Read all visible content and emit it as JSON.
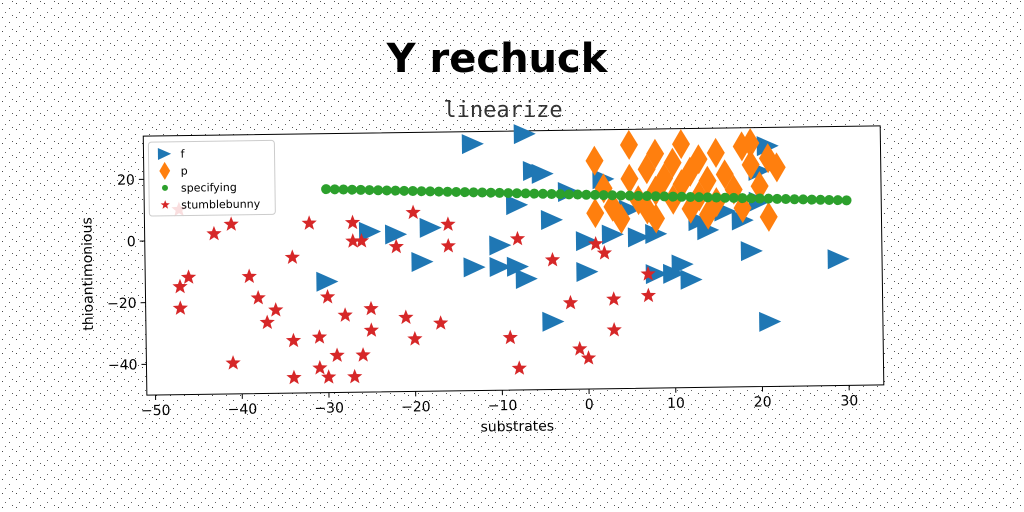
{
  "chart_data": {
    "type": "scatter",
    "title": "Y rechuck",
    "subtitle": "linearize",
    "xlabel": "substrates",
    "ylabel": "thioantimonious",
    "xlim": [
      -51,
      34
    ],
    "ylim": [
      -50,
      34
    ],
    "xticks": [
      -50,
      -40,
      -30,
      -20,
      -10,
      0,
      10,
      20,
      30
    ],
    "yticks": [
      -40,
      -20,
      0,
      20
    ],
    "grid": false,
    "legend_position": "top-left",
    "series": [
      {
        "name": "f",
        "marker": "triangle-right",
        "color": "#1f77b4",
        "points": [
          [
            -30,
            -14
          ],
          [
            -25,
            2
          ],
          [
            -22,
            1
          ],
          [
            -18,
            3
          ],
          [
            -19,
            -8
          ],
          [
            -13,
            30
          ],
          [
            -13,
            -10
          ],
          [
            -10,
            -3
          ],
          [
            -10,
            -10
          ],
          [
            -8,
            -10
          ],
          [
            -7,
            -14
          ],
          [
            -8,
            10
          ],
          [
            -7,
            33
          ],
          [
            -6,
            21
          ],
          [
            -5,
            20
          ],
          [
            -4,
            5
          ],
          [
            -4,
            -28
          ],
          [
            -2,
            14
          ],
          [
            0,
            -2
          ],
          [
            0,
            -12
          ],
          [
            2,
            18
          ],
          [
            3,
            0
          ],
          [
            5,
            8
          ],
          [
            6,
            -1
          ],
          [
            8,
            0
          ],
          [
            8,
            -13
          ],
          [
            10,
            -13
          ],
          [
            11,
            -10
          ],
          [
            12,
            -15
          ],
          [
            13,
            4
          ],
          [
            14,
            1
          ],
          [
            16,
            7
          ],
          [
            18,
            4
          ],
          [
            19,
            -6
          ],
          [
            20,
            10
          ],
          [
            20,
            20
          ],
          [
            21,
            28
          ],
          [
            21,
            -29
          ],
          [
            29,
            -9
          ]
        ]
      },
      {
        "name": "p",
        "marker": "thin-diamond",
        "color": "#ff7f0e",
        "points": [
          [
            1,
            24
          ],
          [
            1,
            7
          ],
          [
            2,
            15
          ],
          [
            3,
            9
          ],
          [
            4,
            5
          ],
          [
            5,
            29
          ],
          [
            5,
            18
          ],
          [
            6,
            11
          ],
          [
            7,
            21
          ],
          [
            7,
            8
          ],
          [
            8,
            26
          ],
          [
            8,
            14
          ],
          [
            8,
            5
          ],
          [
            9,
            18
          ],
          [
            10,
            23
          ],
          [
            10,
            11
          ],
          [
            11,
            29
          ],
          [
            11,
            16
          ],
          [
            12,
            20
          ],
          [
            12,
            8
          ],
          [
            13,
            24
          ],
          [
            13,
            12
          ],
          [
            14,
            17
          ],
          [
            14,
            6
          ],
          [
            15,
            26
          ],
          [
            15,
            10
          ],
          [
            16,
            19
          ],
          [
            17,
            14
          ],
          [
            18,
            28
          ],
          [
            18,
            8
          ],
          [
            19,
            22
          ],
          [
            19,
            29
          ],
          [
            20,
            15
          ],
          [
            21,
            24
          ],
          [
            22,
            21
          ],
          [
            21,
            5
          ]
        ]
      },
      {
        "name": "specifying",
        "marker": "circle",
        "color": "#2ca02c",
        "points": [
          [
            -30,
            16
          ],
          [
            -29,
            15.9
          ],
          [
            -28,
            15.8
          ],
          [
            -27,
            15.7
          ],
          [
            -26,
            15.6
          ],
          [
            -25,
            15.5
          ],
          [
            -24,
            15.4
          ],
          [
            -23,
            15.3
          ],
          [
            -22,
            15.2
          ],
          [
            -21,
            15.1
          ],
          [
            -20,
            15.0
          ],
          [
            -19,
            14.9
          ],
          [
            -18,
            14.8
          ],
          [
            -17,
            14.7
          ],
          [
            -16,
            14.6
          ],
          [
            -15,
            14.5
          ],
          [
            -14,
            14.4
          ],
          [
            -13,
            14.3
          ],
          [
            -12,
            14.2
          ],
          [
            -11,
            14.1
          ],
          [
            -10,
            14.0
          ],
          [
            -9,
            13.9
          ],
          [
            -8,
            13.8
          ],
          [
            -7,
            13.7
          ],
          [
            -6,
            13.6
          ],
          [
            -5,
            13.5
          ],
          [
            -4,
            13.4
          ],
          [
            -3,
            13.3
          ],
          [
            -2,
            13.2
          ],
          [
            -1,
            13.1
          ],
          [
            0,
            13.0
          ],
          [
            1,
            12.9
          ],
          [
            2,
            12.8
          ],
          [
            3,
            12.7
          ],
          [
            4,
            12.6
          ],
          [
            5,
            12.5
          ],
          [
            6,
            12.4
          ],
          [
            7,
            12.3
          ],
          [
            8,
            12.2
          ],
          [
            9,
            12.1
          ],
          [
            10,
            12.0
          ],
          [
            11,
            11.9
          ],
          [
            12,
            11.8
          ],
          [
            13,
            11.7
          ],
          [
            14,
            11.6
          ],
          [
            15,
            11.5
          ],
          [
            16,
            11.4
          ],
          [
            17,
            11.3
          ],
          [
            18,
            11.2
          ],
          [
            19,
            11.1
          ],
          [
            20,
            11.0
          ],
          [
            21,
            10.9
          ],
          [
            22,
            10.8
          ],
          [
            23,
            10.7
          ],
          [
            24,
            10.6
          ],
          [
            25,
            10.5
          ],
          [
            26,
            10.4
          ],
          [
            27,
            10.3
          ],
          [
            28,
            10.2
          ],
          [
            29,
            10.1
          ],
          [
            30,
            10.0
          ]
        ]
      },
      {
        "name": "stumblebunny",
        "marker": "star",
        "color": "#d62728",
        "points": [
          [
            -47,
            10
          ],
          [
            -47,
            -15
          ],
          [
            -47,
            -22
          ],
          [
            -46,
            -12
          ],
          [
            -43,
            2
          ],
          [
            -41,
            5
          ],
          [
            -41,
            -40
          ],
          [
            -39,
            -12
          ],
          [
            -38,
            -19
          ],
          [
            -37,
            -27
          ],
          [
            -36,
            -23
          ],
          [
            -34,
            -6
          ],
          [
            -34,
            -33
          ],
          [
            -34,
            -45
          ],
          [
            -32,
            5
          ],
          [
            -31,
            -32
          ],
          [
            -31,
            -42
          ],
          [
            -30,
            -45
          ],
          [
            -30,
            -19
          ],
          [
            -29,
            -38
          ],
          [
            -28,
            -25
          ],
          [
            -27,
            5
          ],
          [
            -27,
            -1
          ],
          [
            -27,
            -45
          ],
          [
            -26,
            -1
          ],
          [
            -26,
            -38
          ],
          [
            -25,
            -23
          ],
          [
            -25,
            -30
          ],
          [
            -22,
            -3
          ],
          [
            -21,
            -26
          ],
          [
            -20,
            8
          ],
          [
            -20,
            -33
          ],
          [
            -17,
            -28
          ],
          [
            -16,
            4
          ],
          [
            -16,
            -3
          ],
          [
            -9,
            -33
          ],
          [
            -8,
            -43
          ],
          [
            -8,
            -1
          ],
          [
            -4,
            -8
          ],
          [
            -2,
            -22
          ],
          [
            -1,
            -37
          ],
          [
            0,
            -40
          ],
          [
            1,
            -3
          ],
          [
            2,
            -6
          ],
          [
            3,
            -21
          ],
          [
            3,
            -31
          ],
          [
            7,
            -13
          ],
          [
            7,
            -20
          ]
        ]
      }
    ]
  }
}
